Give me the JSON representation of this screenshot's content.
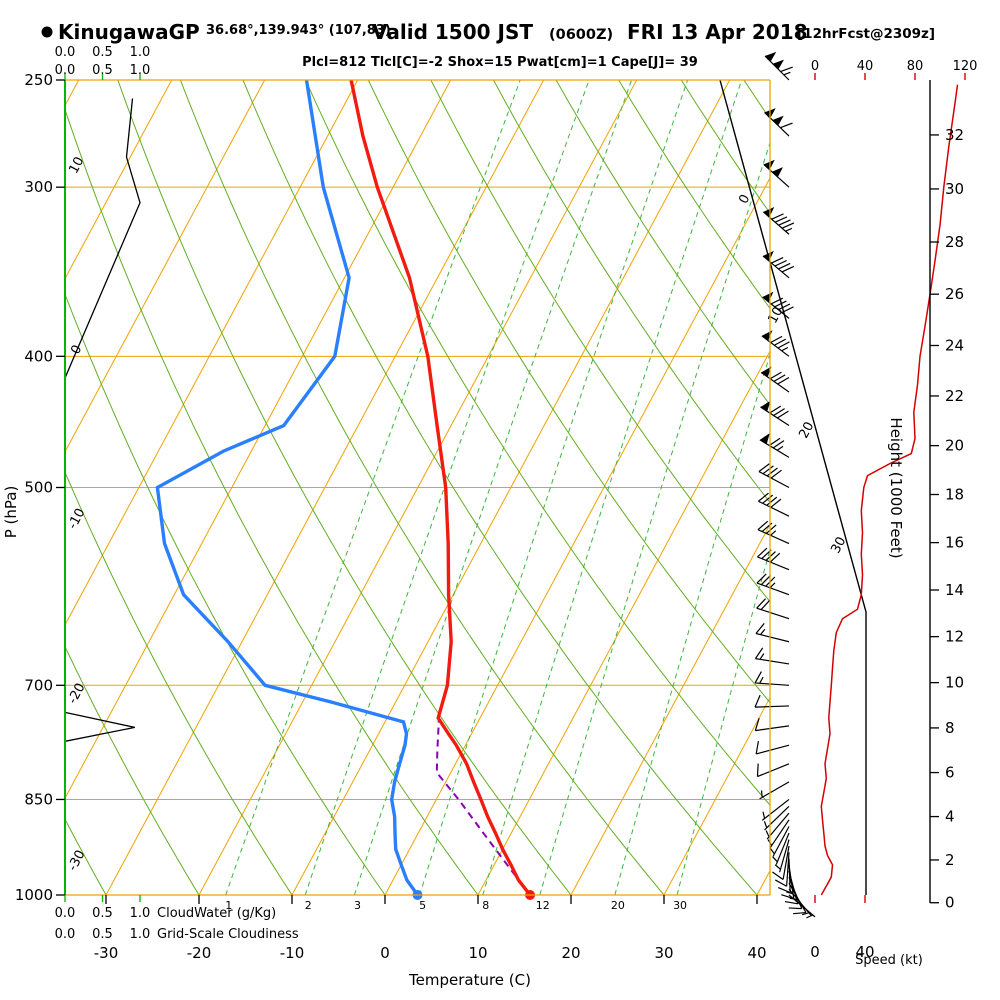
{
  "header": {
    "station": "KinugawaGP",
    "coords": "36.68°,139.943° (107,83)",
    "valid": "Valid 1500 JST",
    "valid_z": "(0600Z)",
    "valid_date": "FRI 13 Apr 2018",
    "fcst": "[12hrFcst@2309z]",
    "indices": "Plcl=812 Tlcl[C]=-2 Shox=15 Pwat[cm]=1 Cape[J]= 39"
  },
  "axes": {
    "pressure": {
      "title": "P (hPa)",
      "ticks": [
        250,
        300,
        400,
        500,
        700,
        850,
        1000
      ]
    },
    "temperature": {
      "title": "Temperature (C)",
      "ticks": [
        -30,
        -20,
        -10,
        0,
        10,
        20,
        30,
        40
      ]
    },
    "height": {
      "title": "Height (1000 Feet)",
      "ticks": [
        0,
        2,
        4,
        6,
        8,
        10,
        12,
        14,
        16,
        18,
        20,
        22,
        24,
        26,
        28,
        30,
        32
      ]
    },
    "speed": {
      "title": "Speed (kt)",
      "top_ticks": [
        0,
        40,
        80,
        120
      ],
      "bottom_ticks": [
        0,
        40
      ]
    },
    "cloudwater": {
      "title": "CloudWater (g/Kg)",
      "ticks": [
        "0.0",
        "0.5",
        "1.0"
      ]
    },
    "cloudiness": {
      "title": "Grid-Scale Cloudiness",
      "ticks": [
        "0.0",
        "0.5",
        "1.0"
      ]
    }
  },
  "chart_data": {
    "type": "line",
    "diagram": "skew-t log-p sounding",
    "pressure_range": [
      1000,
      250
    ],
    "isobars": [
      300,
      400,
      500,
      700,
      850
    ],
    "isotherm_range": {
      "min": -80,
      "max": 40,
      "step": 10
    },
    "dry_adiabat_range": {
      "min": -30,
      "max": 120,
      "step": 10
    },
    "isotherm_line_labels": [
      0,
      10,
      20,
      30
    ],
    "dry_adiabat_labels": [
      10,
      0,
      -10,
      -20,
      -30
    ],
    "mixing_ratio_values": [
      1,
      2,
      3,
      5,
      8,
      12,
      20,
      30
    ],
    "temperature_c": {
      "pressure": [
        1000,
        975,
        950,
        925,
        900,
        875,
        850,
        825,
        800,
        775,
        760,
        740,
        700,
        650,
        600,
        550,
        500,
        450,
        400,
        350,
        300,
        275,
        250
      ],
      "values": [
        15.6,
        13.5,
        11.8,
        10.0,
        8.3,
        6.5,
        4.8,
        3.0,
        1.2,
        -1.0,
        -2.5,
        -4.5,
        -5.4,
        -7.5,
        -10.5,
        -13.5,
        -17.0,
        -21.5,
        -26.5,
        -33.0,
        -41.7,
        -46.2,
        -50.7
      ]
    },
    "dewpoint_c": {
      "pressure": [
        1000,
        975,
        950,
        925,
        900,
        875,
        850,
        825,
        800,
        775,
        760,
        745,
        720,
        700,
        650,
        600,
        550,
        500,
        470,
        450,
        400,
        350,
        300,
        250
      ],
      "values": [
        3.5,
        1.5,
        0.0,
        -1.5,
        -2.5,
        -3.5,
        -4.8,
        -5.5,
        -6.0,
        -6.5,
        -7.0,
        -8.0,
        -17.0,
        -25.0,
        -31.5,
        -39.0,
        -44.0,
        -48.0,
        -43.0,
        -38.0,
        -36.5,
        -39.5,
        -47.5,
        -55.5
      ]
    },
    "parcel_c": {
      "pressure": [
        1000,
        950,
        900,
        850,
        812,
        780,
        750,
        732
      ],
      "values": [
        15.6,
        11.4,
        7.0,
        2.4,
        -1.5,
        -2.8,
        -4.0,
        -4.8
      ]
    },
    "surface": {
      "temperature_c": 15.6,
      "dewpoint_c": 3.5
    },
    "wind_barbs_format": "[hPa, direction_deg_from, knots]",
    "wind_barbs": [
      [
        1000,
        130,
        5
      ],
      [
        990,
        140,
        7
      ],
      [
        980,
        150,
        9
      ],
      [
        970,
        158,
        12
      ],
      [
        960,
        165,
        13
      ],
      [
        950,
        172,
        13
      ],
      [
        940,
        178,
        11
      ],
      [
        930,
        184,
        9
      ],
      [
        920,
        190,
        8
      ],
      [
        910,
        196,
        7
      ],
      [
        900,
        202,
        7
      ],
      [
        890,
        208,
        6
      ],
      [
        880,
        214,
        6
      ],
      [
        870,
        220,
        5
      ],
      [
        860,
        226,
        5
      ],
      [
        850,
        232,
        6
      ],
      [
        825,
        240,
        7
      ],
      [
        800,
        248,
        8
      ],
      [
        775,
        255,
        10
      ],
      [
        750,
        262,
        12
      ],
      [
        725,
        268,
        12
      ],
      [
        700,
        274,
        13
      ],
      [
        675,
        279,
        14
      ],
      [
        650,
        284,
        15
      ],
      [
        625,
        288,
        22
      ],
      [
        600,
        290,
        36
      ],
      [
        575,
        292,
        38
      ],
      [
        550,
        294,
        37
      ],
      [
        525,
        296,
        38
      ],
      [
        500,
        298,
        40
      ],
      [
        475,
        301,
        75
      ],
      [
        450,
        303,
        80
      ],
      [
        425,
        305,
        81
      ],
      [
        400,
        307,
        84
      ],
      [
        375,
        309,
        88
      ],
      [
        350,
        310,
        92
      ],
      [
        325,
        311,
        97
      ],
      [
        300,
        312,
        102
      ],
      [
        275,
        314,
        108
      ],
      [
        250,
        315,
        114
      ]
    ],
    "wind_speed_kt": {
      "pressure": [
        1000,
        985,
        970,
        950,
        935,
        920,
        900,
        880,
        860,
        840,
        820,
        800,
        780,
        760,
        740,
        720,
        700,
        680,
        660,
        640,
        625,
        615,
        600,
        580,
        560,
        540,
        520,
        500,
        490,
        480,
        472,
        460,
        440,
        420,
        400,
        380,
        360,
        340,
        320,
        300,
        280,
        260,
        252
      ],
      "values": [
        5,
        9,
        13,
        14,
        10,
        8,
        7,
        6,
        5,
        7,
        9,
        8,
        10,
        12,
        11,
        12,
        13,
        14,
        15,
        17,
        22,
        34,
        37,
        38,
        37,
        38,
        37,
        39,
        42,
        60,
        77,
        80,
        79,
        82,
        84,
        88,
        92,
        96,
        100,
        103,
        107,
        112,
        114
      ]
    },
    "cloudiness_frac": {
      "pressure": [
        1000,
        770,
        752,
        733,
        415,
        308,
        285,
        258
      ],
      "values": [
        0,
        0,
        0.93,
        0,
        0,
        1.0,
        0.82,
        0.9
      ]
    },
    "cloudwater_gkg": {
      "pressure": [
        1000,
        250
      ],
      "values": [
        0,
        0
      ]
    }
  },
  "colors": {
    "orange": "#f0a202",
    "green_solid": "#63ad22",
    "green_dash": "#3db53d",
    "green_axis": "#00b400",
    "temperature": "#f21b0f",
    "dewpoint": "#2a7fff",
    "parcel": "#8b00b0",
    "indices": "#aa00aa",
    "speed": "#d40000",
    "black": "#000000"
  }
}
